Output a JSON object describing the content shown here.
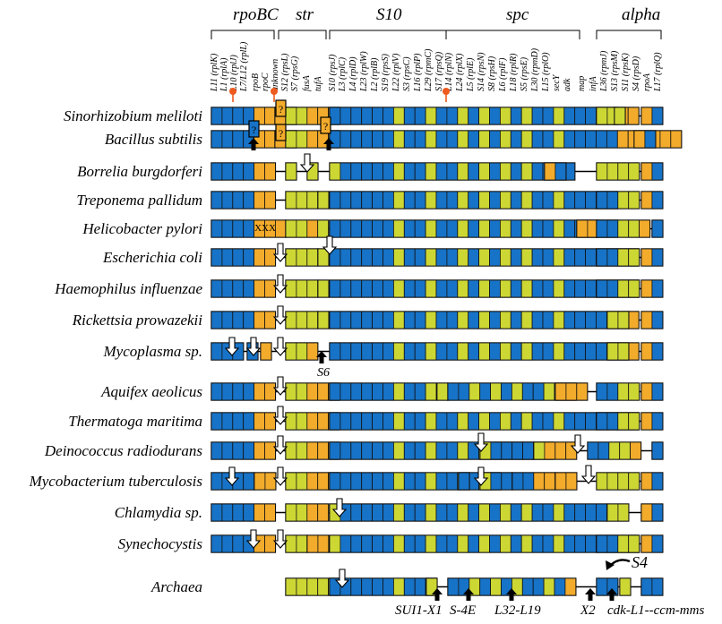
{
  "colors": {
    "blue": "#1773c7",
    "orange": "#f2ab2b",
    "yellow": "#cdd734",
    "outline": "#111111",
    "marker": "#ee5a1f"
  },
  "operons": [
    "rpoBC",
    "str",
    "S10",
    "spc",
    "alpha"
  ],
  "genes": [
    "L11 (rplK)",
    "L1 (rplA)",
    "L10 (rplJ)",
    "L7/L12 (rplL)",
    "rpoB",
    "rpoC",
    "unknown",
    "S12 (rpsL)",
    "S7 (rpsG)",
    "fusA",
    "tufA",
    "S10 (rpsJ)",
    "L3 (rplC)",
    "L4 (rplD)",
    "L23 (rplW)",
    "L2 (rplB)",
    "S19 (rpsS)",
    "L22 (rplV)",
    "S3 (rpsC)",
    "L16 (rplP)",
    "L29 (rpmC)",
    "S17 (rpsQ)",
    "L14 (rplN)",
    "L24 (rplX)",
    "L5 (rplE)",
    "S14 (rpsN)",
    "S8 (rpsH)",
    "L6 (rplF)",
    "L18 (rplR)",
    "S5 (rpsE)",
    "L30 (rpmD)",
    "L15 (rplO)",
    "secY",
    "adk",
    "map",
    "infA",
    "L36 (rpmJ)",
    "S13 (rpsM)",
    "S11 (rpsK)",
    "S4 (rpsD)",
    "rpoA",
    "L17 (rplQ)"
  ],
  "organisms": [
    "Sinorhizobium meliloti",
    "Bacillus subtilis",
    "Borrelia burgdorferi",
    "Treponema pallidum",
    "Helicobacter pylori",
    "Escherichia coli",
    "Haemophilus influenzae",
    "Rickettsia prowazekii",
    "Mycoplasma sp.",
    "Aquifex aeolicus",
    "Thermatoga maritima",
    "Deinococcus radiodurans",
    "Mycobacterium tuberculosis",
    "Chlamydia sp.",
    "Synechocystis",
    "Archaea"
  ],
  "annotations": {
    "question": "?",
    "xxx": "XXX",
    "s6": "S6",
    "s4": "S4",
    "sui": "SUI1-X1",
    "s4e": "S-4E",
    "l32": "L32-L19",
    "x2": "X2",
    "cdk": "cdk-L1--ccm-mms"
  }
}
